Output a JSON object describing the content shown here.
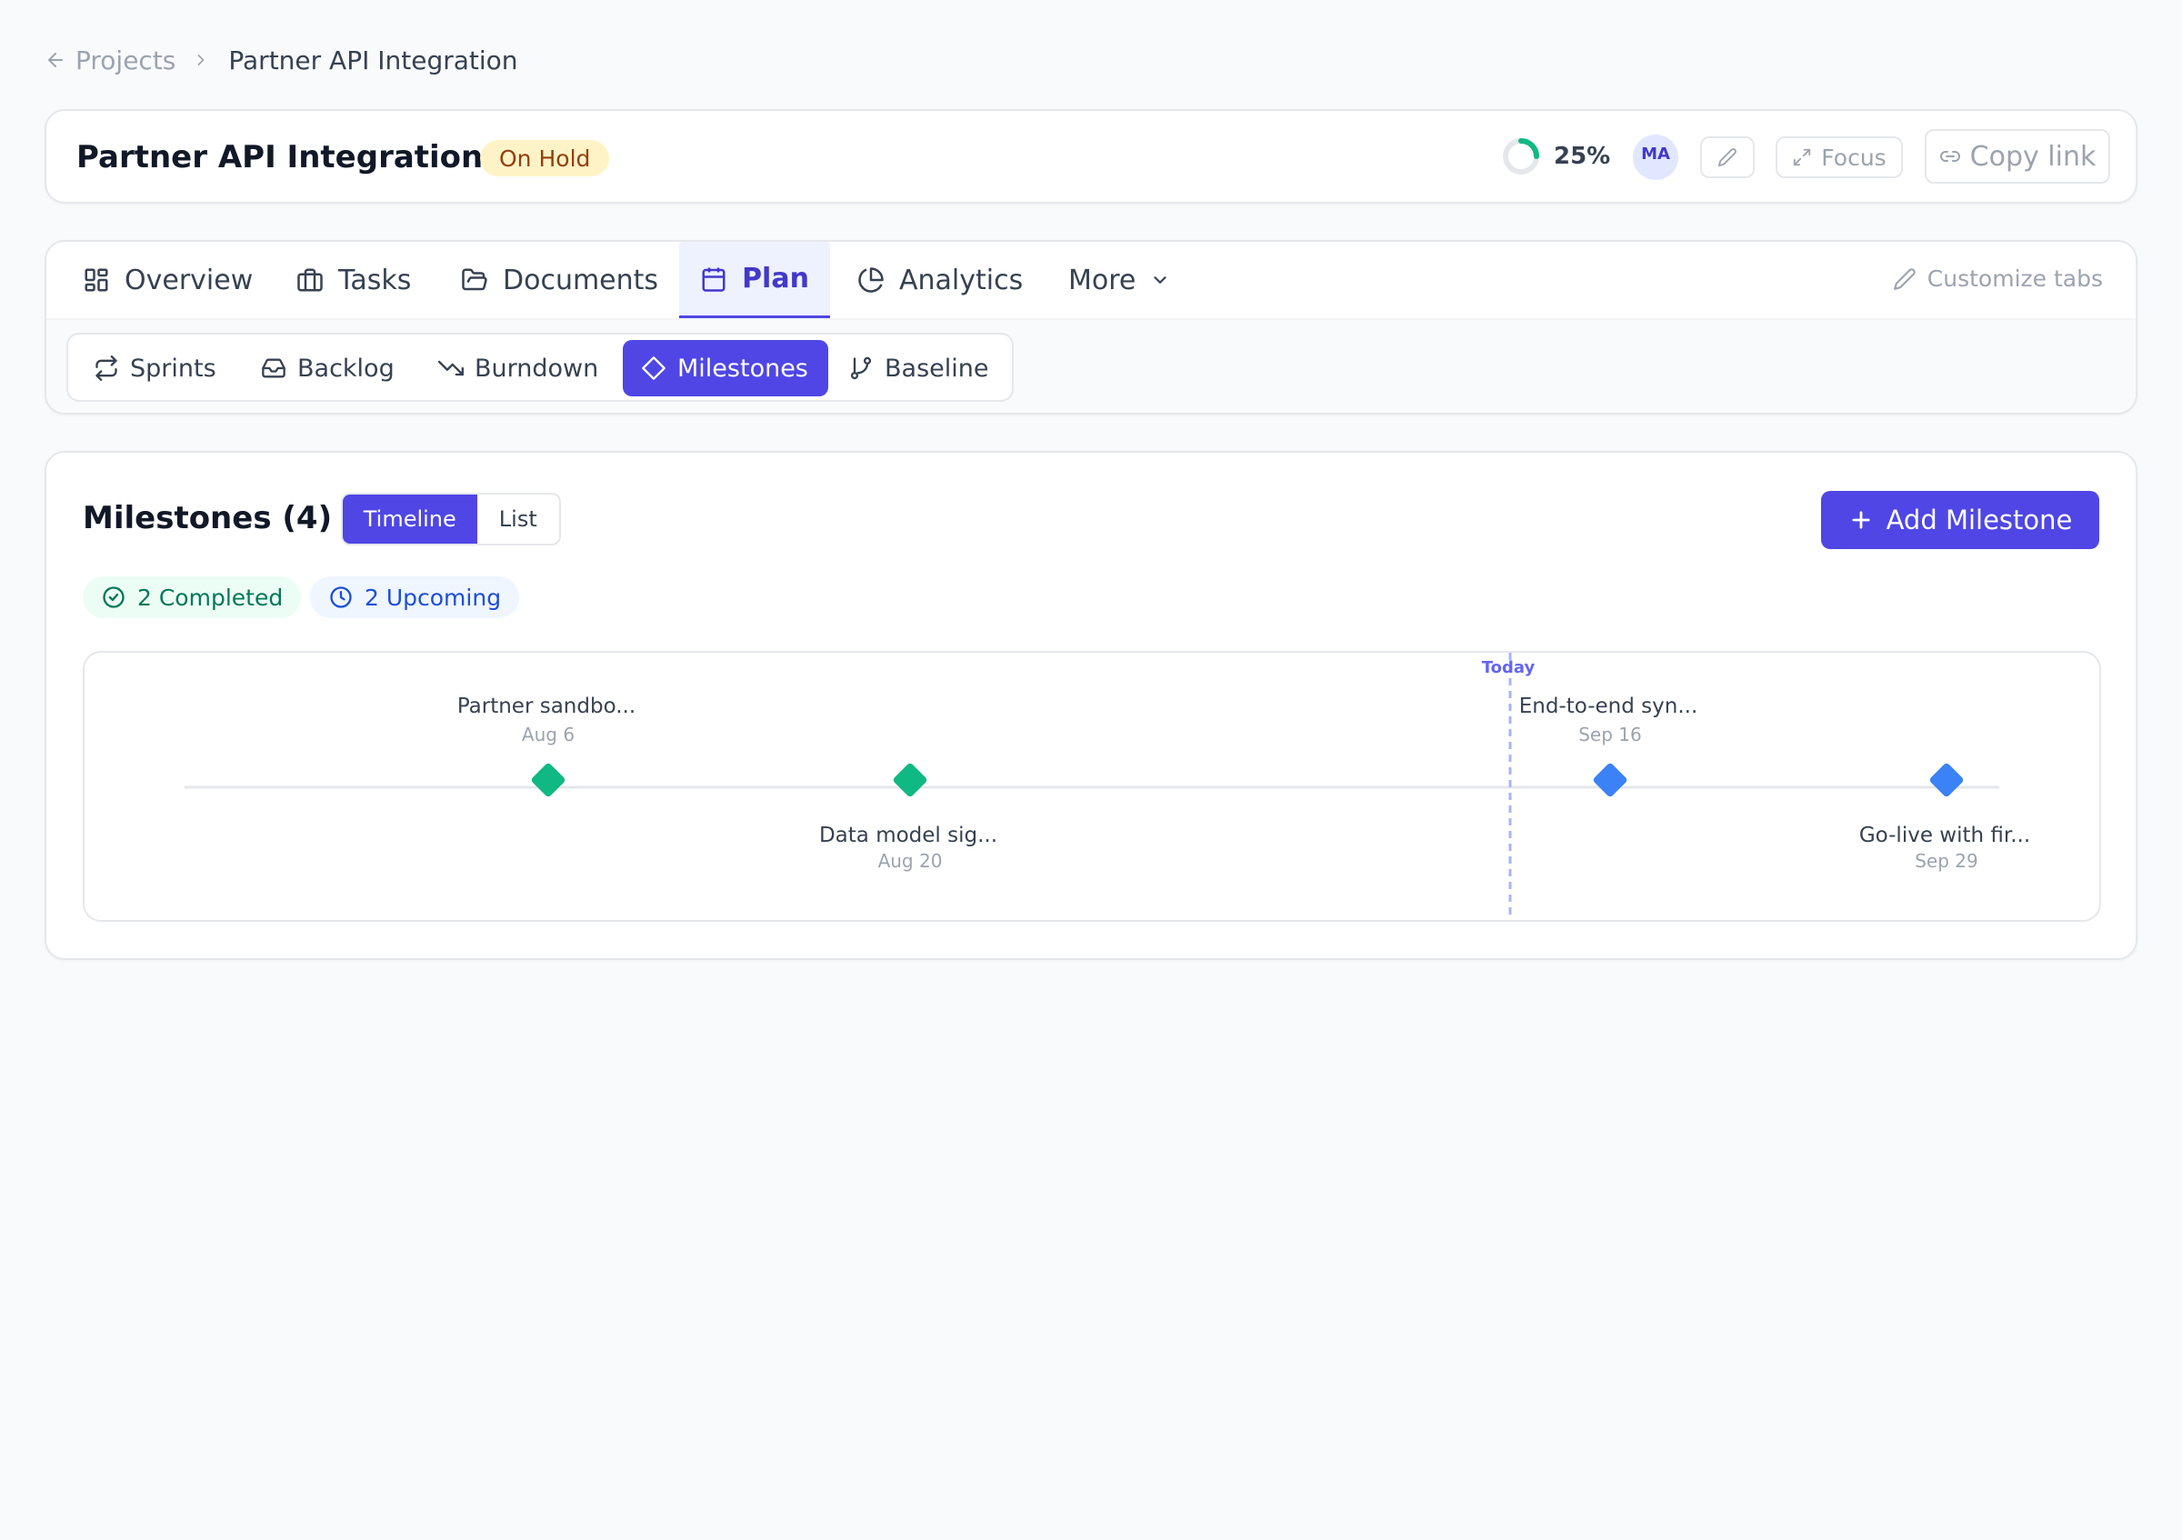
{
  "breadcrumb": {
    "back_label": "Projects",
    "current": "Partner API Integration"
  },
  "header": {
    "title": "Partner API Integration",
    "status": "On Hold",
    "progress_percent": 25,
    "progress_label": "25%",
    "avatar_initials": "MA",
    "focus_label": "Focus",
    "copy_link_label": "Copy link"
  },
  "tabs": {
    "items": [
      {
        "label": "Overview",
        "icon": "grid-icon"
      },
      {
        "label": "Tasks",
        "icon": "briefcase-icon"
      },
      {
        "label": "Documents",
        "icon": "folder-icon"
      },
      {
        "label": "Plan",
        "icon": "calendar-icon",
        "active": true
      },
      {
        "label": "Analytics",
        "icon": "pie-chart-icon"
      },
      {
        "label": "More",
        "icon": "chevron-down-icon"
      }
    ],
    "customize_label": "Customize tabs"
  },
  "subtabs": {
    "items": [
      {
        "label": "Sprints",
        "icon": "repeat-icon"
      },
      {
        "label": "Backlog",
        "icon": "inbox-icon"
      },
      {
        "label": "Burndown",
        "icon": "trend-down-icon"
      },
      {
        "label": "Milestones",
        "icon": "diamond-icon",
        "active": true
      },
      {
        "label": "Baseline",
        "icon": "git-branch-icon"
      }
    ]
  },
  "milestones": {
    "title": "Milestones (4)",
    "view_options": [
      "Timeline",
      "List"
    ],
    "active_view": "Timeline",
    "add_label": "Add Milestone",
    "completed_label": "2 Completed",
    "upcoming_label": "2 Upcoming",
    "today_label": "Today",
    "colors": {
      "completed": "#10b981",
      "upcoming": "#3b82f6",
      "today": "#6366f1"
    },
    "items": [
      {
        "name": "Partner sandbo...",
        "date": "Aug 6",
        "status": "completed"
      },
      {
        "name": "Data model sig...",
        "date": "Aug 20",
        "status": "completed"
      },
      {
        "name": "End-to-end syn...",
        "date": "Sep 16",
        "status": "upcoming"
      },
      {
        "name": "Go-live with fir...",
        "date": "Sep 29",
        "status": "upcoming"
      }
    ]
  }
}
